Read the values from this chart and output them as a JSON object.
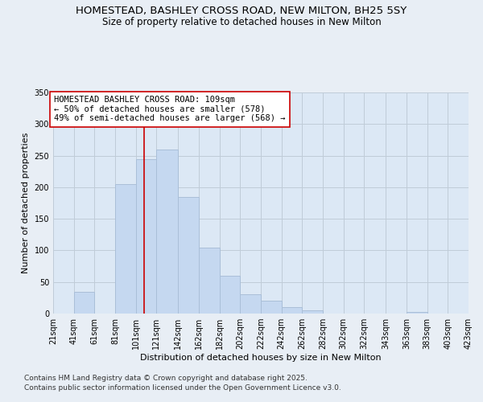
{
  "title": "HOMESTEAD, BASHLEY CROSS ROAD, NEW MILTON, BH25 5SY",
  "subtitle": "Size of property relative to detached houses in New Milton",
  "xlabel": "Distribution of detached houses by size in New Milton",
  "ylabel": "Number of detached properties",
  "footnote1": "Contains HM Land Registry data © Crown copyright and database right 2025.",
  "footnote2": "Contains public sector information licensed under the Open Government Licence v3.0.",
  "annotation_line1": "HOMESTEAD BASHLEY CROSS ROAD: 109sqm",
  "annotation_line2": "← 50% of detached houses are smaller (578)",
  "annotation_line3": "49% of semi-detached houses are larger (568) →",
  "property_size": 109,
  "bins": [
    21,
    41,
    61,
    81,
    101,
    121,
    142,
    162,
    182,
    202,
    222,
    242,
    262,
    282,
    302,
    322,
    343,
    363,
    383,
    403,
    423
  ],
  "counts": [
    0,
    35,
    0,
    205,
    245,
    260,
    185,
    105,
    60,
    30,
    20,
    10,
    5,
    0,
    0,
    0,
    0,
    3,
    0,
    0
  ],
  "bar_color": "#c5d8f0",
  "bar_edge_color": "#aabfd8",
  "vline_color": "#cc0000",
  "annotation_box_color": "#ffffff",
  "annotation_box_edge": "#cc0000",
  "background_color": "#e8eef5",
  "plot_bg_color": "#dce8f5",
  "grid_color": "#c0ccd8",
  "ylim": [
    0,
    350
  ],
  "yticks": [
    0,
    50,
    100,
    150,
    200,
    250,
    300,
    350
  ],
  "title_fontsize": 9.5,
  "subtitle_fontsize": 8.5,
  "annotation_fontsize": 7.5,
  "tick_fontsize": 7,
  "ylabel_fontsize": 8,
  "xlabel_fontsize": 8,
  "footnote_fontsize": 6.5
}
